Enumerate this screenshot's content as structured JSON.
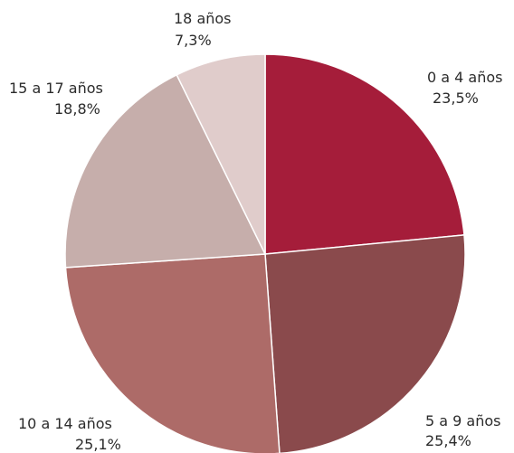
{
  "chart_data": {
    "type": "pie",
    "slices": [
      {
        "label": "0 a 4 años",
        "value": 23.5,
        "value_label": "23,5%",
        "color": "#a51d3a"
      },
      {
        "label": "5 a 9 años",
        "value": 25.4,
        "value_label": "25,4%",
        "color": "#8a4a4c"
      },
      {
        "label": "10 a 14 años",
        "value": 25.1,
        "value_label": "25,1%",
        "color": "#ad6b68"
      },
      {
        "label": "15 a 17 años",
        "value": 18.8,
        "value_label": "18,8%",
        "color": "#c6aeab"
      },
      {
        "label": "18 años",
        "value": 7.3,
        "value_label": "7,3%",
        "color": "#e0cccb"
      }
    ],
    "start_angle": "12 o'clock",
    "direction": "clockwise",
    "legend": "none"
  }
}
